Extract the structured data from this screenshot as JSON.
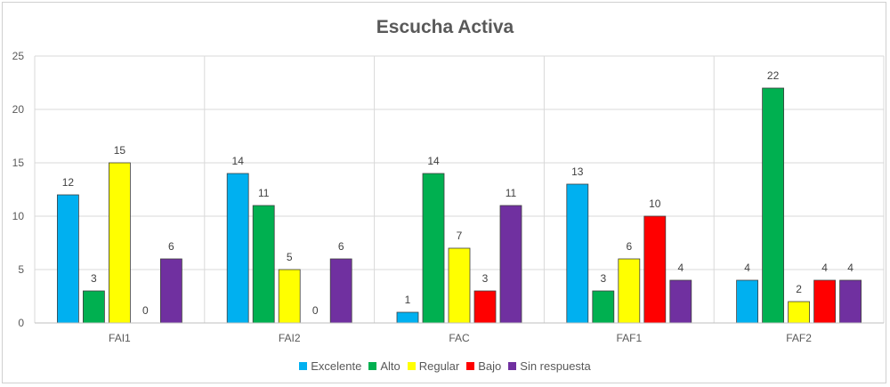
{
  "chart_data": {
    "type": "bar",
    "title": "Escucha Activa",
    "xlabel": "",
    "ylabel": "",
    "ylim": [
      0,
      25
    ],
    "yticks": [
      0,
      5,
      10,
      15,
      20,
      25
    ],
    "grid": true,
    "legend_position": "bottom",
    "categories": [
      "FAI1",
      "FAI2",
      "FAC",
      "FAF1",
      "FAF2"
    ],
    "series": [
      {
        "name": "Excelente",
        "color": "#00b0f0",
        "values": [
          12,
          14,
          1,
          13,
          4
        ]
      },
      {
        "name": "Alto",
        "color": "#00b050",
        "values": [
          3,
          11,
          14,
          3,
          22
        ]
      },
      {
        "name": "Regular",
        "color": "#ffff00",
        "values": [
          15,
          5,
          7,
          6,
          2
        ]
      },
      {
        "name": "Bajo",
        "color": "#ff0000",
        "values": [
          0,
          0,
          3,
          10,
          4
        ]
      },
      {
        "name": "Sin respuesta",
        "color": "#7030a0",
        "values": [
          6,
          6,
          11,
          4,
          4
        ]
      }
    ]
  }
}
